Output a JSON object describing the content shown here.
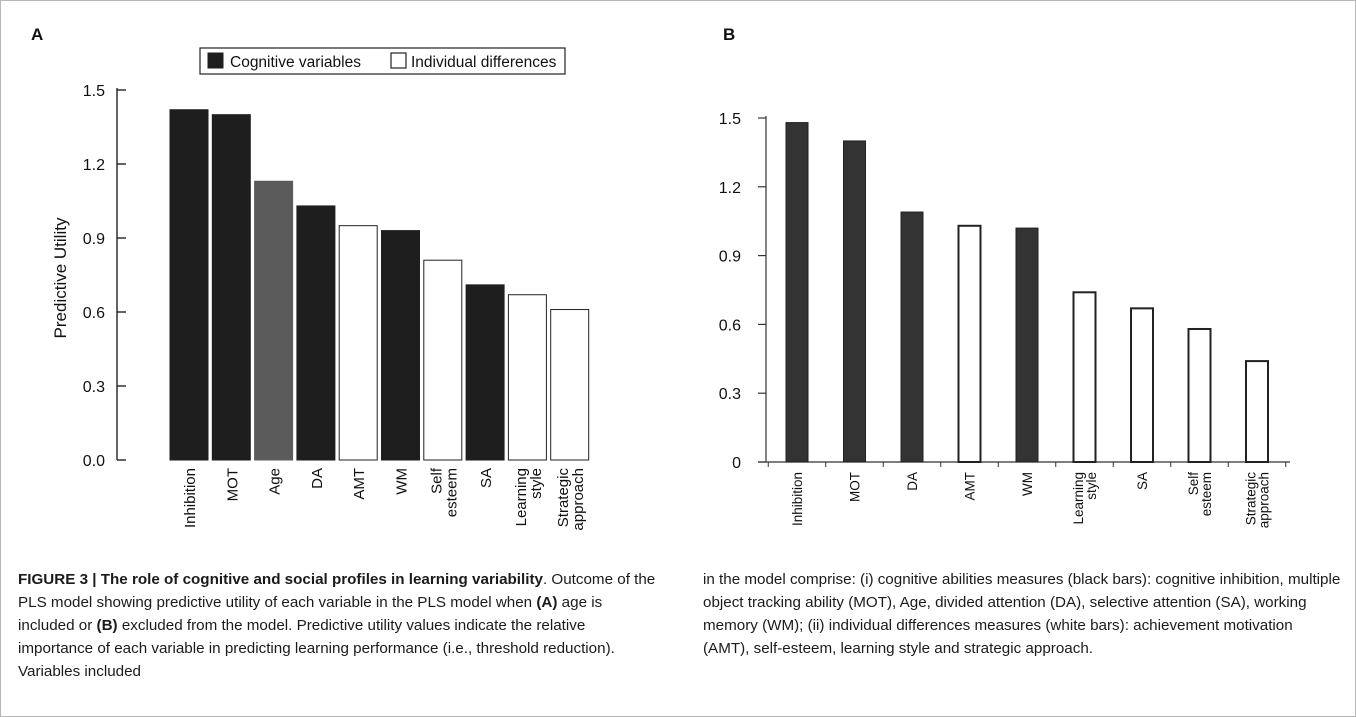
{
  "chart_data": [
    {
      "panel": "A",
      "type": "bar",
      "ylabel": "Predictive Utility",
      "ylim": [
        0,
        1.5
      ],
      "yticks": [
        "0.0",
        "0.3",
        "0.6",
        "0.9",
        "1.2",
        "1.5"
      ],
      "legend": {
        "placement": "top",
        "entries": [
          "Cognitive variables",
          "Individual differences"
        ]
      },
      "categories": [
        {
          "label": [
            "Inhibition"
          ],
          "value": 1.42,
          "fill": "#1e1e1e"
        },
        {
          "label": [
            "MOT"
          ],
          "value": 1.4,
          "fill": "#1e1e1e"
        },
        {
          "label": [
            "Age"
          ],
          "value": 1.13,
          "fill": "#5b5b5b"
        },
        {
          "label": [
            "DA"
          ],
          "value": 1.03,
          "fill": "#1e1e1e"
        },
        {
          "label": [
            "AMT"
          ],
          "value": 0.95,
          "fill": "#ffffff"
        },
        {
          "label": [
            "WM"
          ],
          "value": 0.93,
          "fill": "#1e1e1e"
        },
        {
          "label": [
            "Self",
            "esteem"
          ],
          "value": 0.81,
          "fill": "#ffffff"
        },
        {
          "label": [
            "SA"
          ],
          "value": 0.71,
          "fill": "#1e1e1e"
        },
        {
          "label": [
            "Learning",
            "style"
          ],
          "value": 0.67,
          "fill": "#ffffff"
        },
        {
          "label": [
            "Strategic",
            "approach"
          ],
          "value": 0.61,
          "fill": "#ffffff"
        }
      ]
    },
    {
      "panel": "B",
      "type": "bar",
      "ylim": [
        0,
        1.5
      ],
      "yticks": [
        "0",
        "0.3",
        "0.6",
        "0.9",
        "1.2",
        "1.5"
      ],
      "categories": [
        {
          "label": [
            "Inhibition"
          ],
          "value": 1.48,
          "fill": "#333333"
        },
        {
          "label": [
            "MOT"
          ],
          "value": 1.4,
          "fill": "#333333"
        },
        {
          "label": [
            "DA"
          ],
          "value": 1.09,
          "fill": "#333333"
        },
        {
          "label": [
            "AMT"
          ],
          "value": 1.03,
          "fill": "#ffffff"
        },
        {
          "label": [
            "WM"
          ],
          "value": 1.02,
          "fill": "#333333"
        },
        {
          "label": [
            "Learning",
            "style"
          ],
          "value": 0.74,
          "fill": "#ffffff"
        },
        {
          "label": [
            "SA"
          ],
          "value": 0.67,
          "fill": "#ffffff"
        },
        {
          "label": [
            "Self",
            "esteem"
          ],
          "value": 0.58,
          "fill": "#ffffff"
        },
        {
          "label": [
            "Strategic",
            "approach"
          ],
          "value": 0.44,
          "fill": "#ffffff"
        }
      ]
    }
  ],
  "caption": {
    "figure_label": "FIGURE 3 | The role of cognitive and social profiles in learning variability",
    "segments": [
      ". Outcome of the PLS model showing predictive utility of each variable in the PLS model when ",
      "(A)",
      " age is included or ",
      "(B)",
      " excluded from the model. Predictive utility values indicate the relative importance of each variable in predicting learning performance (i.e., threshold reduction). Variables included"
    ],
    "continuation": "in the model comprise: (i) cognitive abilities measures (black bars): cognitive inhibition, multiple object tracking ability (MOT), Age, divided attention (DA), selective attention (SA), working memory (WM); (ii) individual differences measures (white bars): achievement motivation (AMT), self-esteem, learning style and strategic approach."
  }
}
